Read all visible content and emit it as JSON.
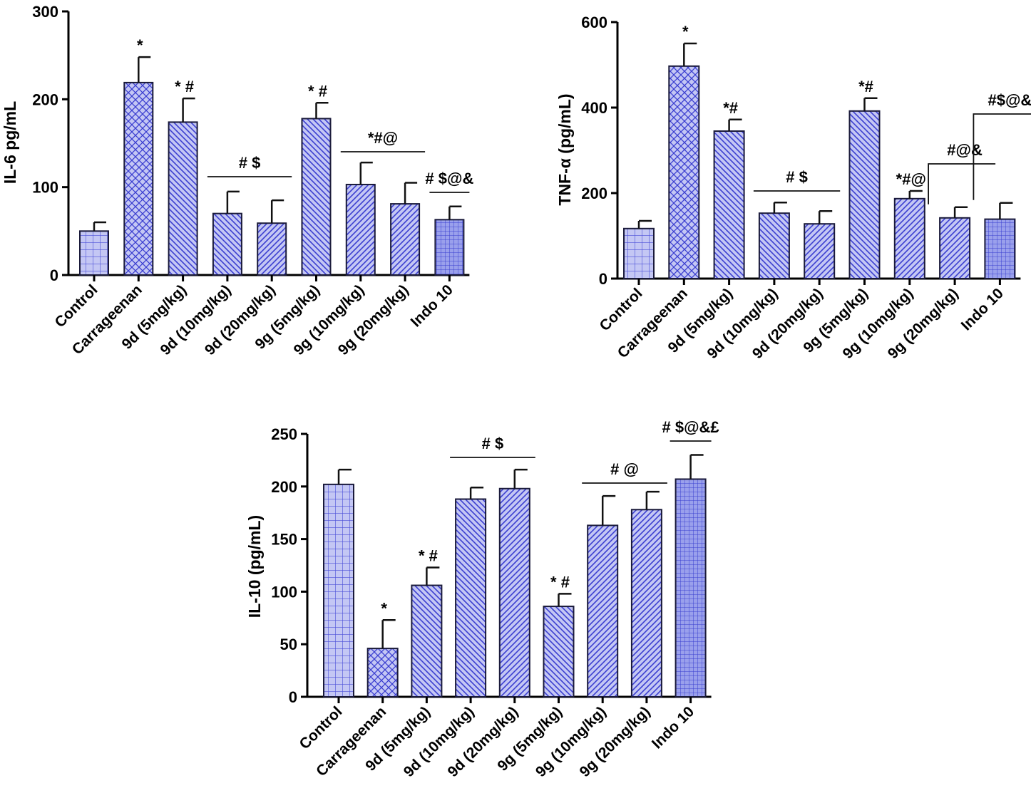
{
  "chart_data": [
    {
      "type": "bar",
      "ylabel": "IL-6 pg/mL",
      "ylim": [
        0,
        300
      ],
      "yticks": [
        0,
        100,
        200,
        300
      ],
      "categories": [
        "Control",
        "Carrageenan",
        "9d (5mg/kg)",
        "9d (10mg/kg)",
        "9d (20mg/kg)",
        "9g (5mg/kg)",
        "9g (10mg/kg)",
        "9g (20mg/kg)",
        "Indo 10"
      ],
      "values": [
        50,
        219,
        174,
        70,
        59,
        178,
        103,
        81,
        63
      ],
      "errors": [
        10,
        29,
        27,
        25,
        26,
        18,
        25,
        24,
        15
      ],
      "patterns": [
        "grid",
        "crosshatch",
        "diag-left",
        "diag-left",
        "diag-right",
        "diag-left",
        "diag-right",
        "diag-right",
        "fine-grid"
      ],
      "annotations": [
        {
          "text": "*",
          "bar": 1
        },
        {
          "text": "* #",
          "bar": 2
        },
        {
          "text": "* #",
          "bar": 5
        },
        {
          "text": "# $",
          "bars": [
            3,
            4
          ],
          "line": "overline"
        },
        {
          "text": "*#@",
          "bars": [
            6,
            7
          ],
          "line": "overline"
        },
        {
          "text": "# $@&",
          "bars": [
            8,
            8
          ],
          "line": "overline"
        }
      ],
      "colors": {
        "fill": "#b8bcf2",
        "hatch": "#3b3fd0"
      }
    },
    {
      "type": "bar",
      "ylabel": "TNF-α (pg/mL)",
      "ylim": [
        0,
        600
      ],
      "yticks": [
        0,
        200,
        400,
        600
      ],
      "categories": [
        "Control",
        "Carrageenan",
        "9d (5mg/kg)",
        "9d (10mg/kg)",
        "9d (20mg/kg)",
        "9g (5mg/kg)",
        "9g (10mg/kg)",
        "9g (20mg/kg)",
        "Indo 10"
      ],
      "values": [
        117,
        497,
        345,
        153,
        128,
        392,
        187,
        142,
        139
      ],
      "errors": [
        18,
        53,
        27,
        25,
        30,
        30,
        18,
        25,
        38
      ],
      "patterns": [
        "grid",
        "crosshatch",
        "diag-left",
        "diag-left",
        "diag-right",
        "diag-left",
        "diag-right",
        "diag-right",
        "fine-grid"
      ],
      "annotations": [
        {
          "text": "*",
          "bar": 1
        },
        {
          "text": "*#",
          "bar": 2
        },
        {
          "text": "# $",
          "bars": [
            3,
            4
          ],
          "line": "overline"
        },
        {
          "text": "*#",
          "bar": 5
        },
        {
          "text": "*#@",
          "bar": 6
        },
        {
          "text": "#@&",
          "bars": [
            7,
            7
          ],
          "line": "bracket"
        },
        {
          "text": "#$@&",
          "bars": [
            8,
            8
          ],
          "line": "bracket"
        }
      ],
      "colors": {
        "fill": "#b8bcf2",
        "hatch": "#3b3fd0"
      }
    },
    {
      "type": "bar",
      "ylabel": "IL-10 (pg/mL)",
      "ylim": [
        0,
        250
      ],
      "yticks": [
        0,
        50,
        100,
        150,
        200,
        250
      ],
      "categories": [
        "Control",
        "Carrageenan",
        "9d (5mg/kg)",
        "9d (10mg/kg)",
        "9d (20mg/kg)",
        "9g (5mg/kg)",
        "9g (10mg/kg)",
        "9g (20mg/kg)",
        "Indo 10"
      ],
      "values": [
        202,
        46,
        106,
        188,
        198,
        86,
        163,
        178,
        207
      ],
      "errors": [
        14,
        27,
        17,
        11,
        18,
        12,
        28,
        17,
        23
      ],
      "patterns": [
        "grid",
        "crosshatch",
        "diag-left",
        "diag-left",
        "diag-right",
        "diag-left",
        "diag-right",
        "diag-right",
        "fine-grid"
      ],
      "annotations": [
        {
          "text": "*",
          "bar": 1
        },
        {
          "text": "* #",
          "bar": 2
        },
        {
          "text": "# $",
          "bars": [
            3,
            4
          ],
          "line": "overline"
        },
        {
          "text": "* #",
          "bar": 5
        },
        {
          "text": "# @",
          "bars": [
            6,
            7
          ],
          "line": "overline"
        },
        {
          "text": "# $@&£",
          "bars": [
            8,
            8
          ],
          "line": "overline"
        }
      ],
      "colors": {
        "fill": "#b8bcf2",
        "hatch": "#3b3fd0"
      }
    }
  ]
}
